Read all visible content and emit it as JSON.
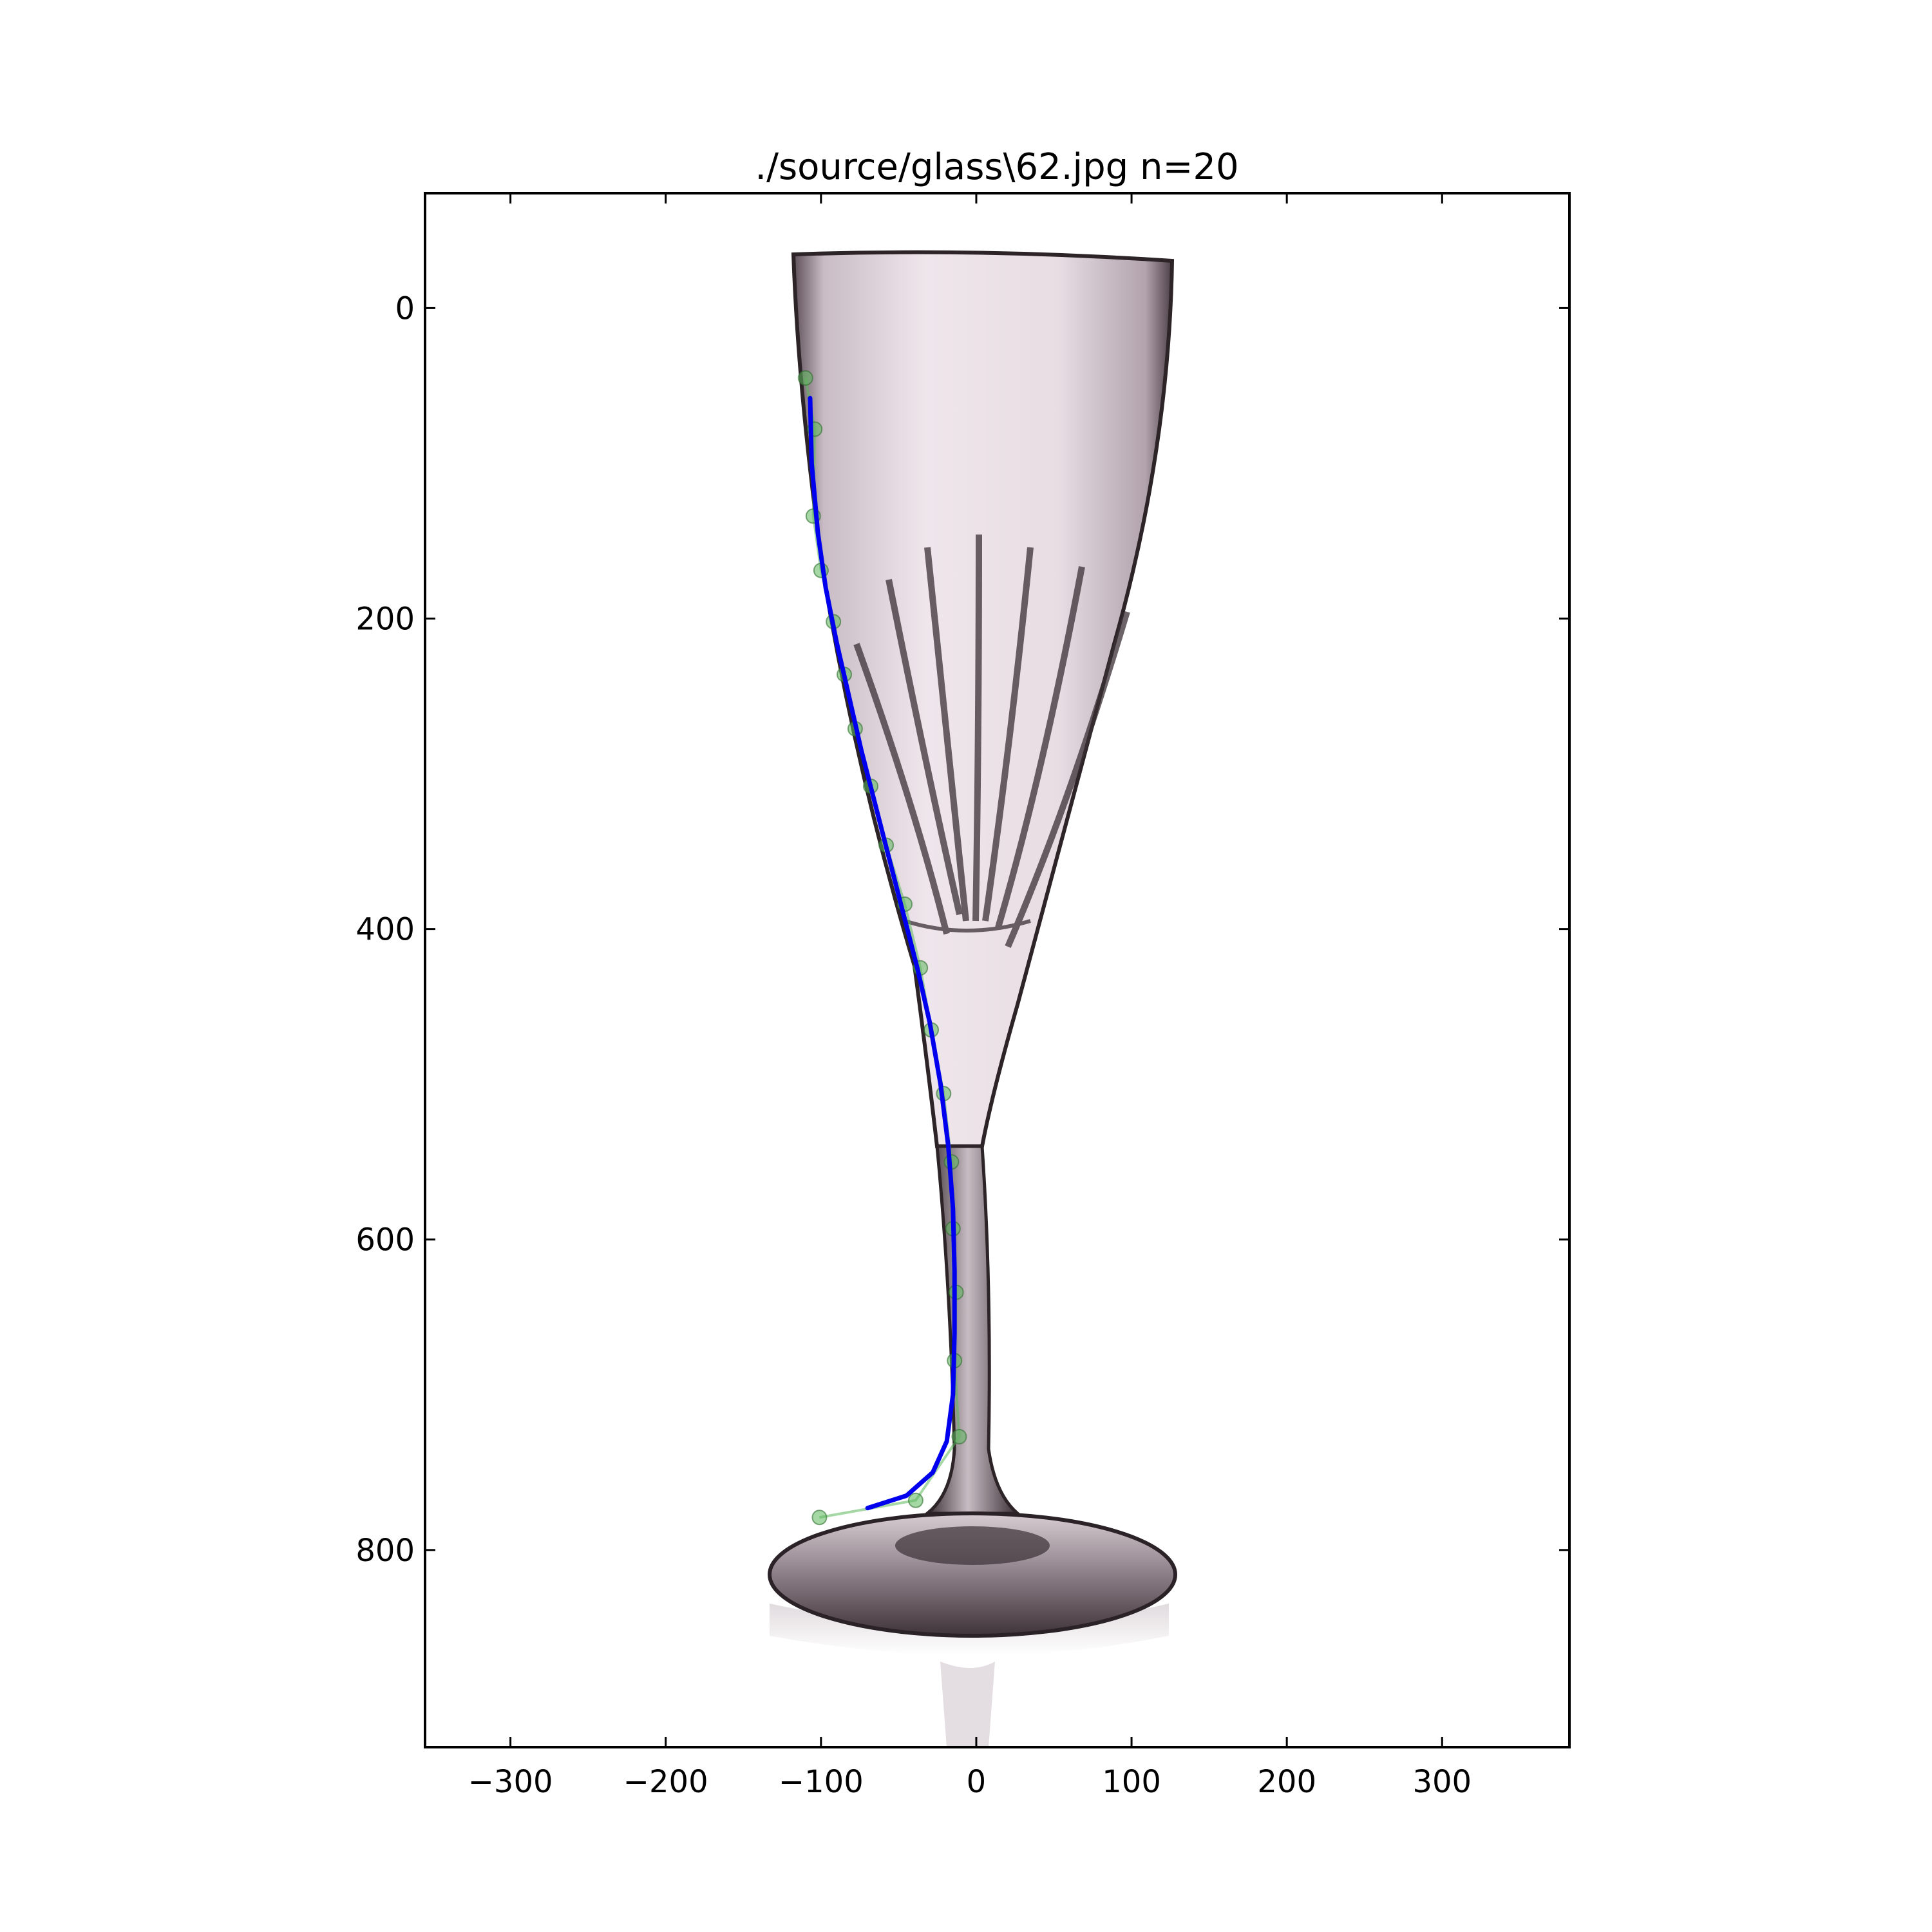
{
  "chart_data": {
    "type": "scatter",
    "title": "./source/glass\\62.jpg n=20",
    "xlabel": "",
    "ylabel": "",
    "xlim": [
      -355,
      382
    ],
    "ylim": [
      927,
      -74
    ],
    "y_inverted": true,
    "grid": false,
    "background": "photograph of a crystal champagne flute (glass)",
    "x_ticks": [
      -300,
      -200,
      -100,
      0,
      100,
      200,
      300
    ],
    "x_tick_labels": [
      "−300",
      "−200",
      "−100",
      "0",
      "100",
      "200",
      "300"
    ],
    "y_ticks": [
      0,
      200,
      400,
      600,
      800
    ],
    "y_tick_labels": [
      "0",
      "200",
      "400",
      "600",
      "800"
    ],
    "series": [
      {
        "kind": "points",
        "color": "#5cb85c",
        "x": [
          -110,
          -104,
          -105,
          -100,
          -92,
          -85,
          -78,
          -68,
          -58,
          -46,
          -36,
          -29,
          -21,
          -16,
          -15,
          -13,
          -14,
          -11,
          -39,
          -101
        ],
        "y": [
          45,
          78,
          134,
          169,
          202,
          236,
          271,
          308,
          346,
          384,
          425,
          465,
          506,
          550,
          593,
          634,
          678,
          727,
          768,
          779
        ]
      },
      {
        "kind": "curve",
        "color": "#0000ee",
        "x": [
          -107,
          -106,
          -102,
          -97,
          -90,
          -82,
          -74,
          -65,
          -56,
          -47,
          -38,
          -30,
          -23,
          -18,
          -15,
          -14,
          -14,
          -15,
          -19,
          -28,
          -45,
          -70
        ],
        "y": [
          58,
          100,
          145,
          180,
          215,
          250,
          285,
          320,
          355,
          390,
          425,
          460,
          500,
          540,
          580,
          620,
          660,
          700,
          730,
          750,
          765,
          773
        ]
      }
    ]
  }
}
